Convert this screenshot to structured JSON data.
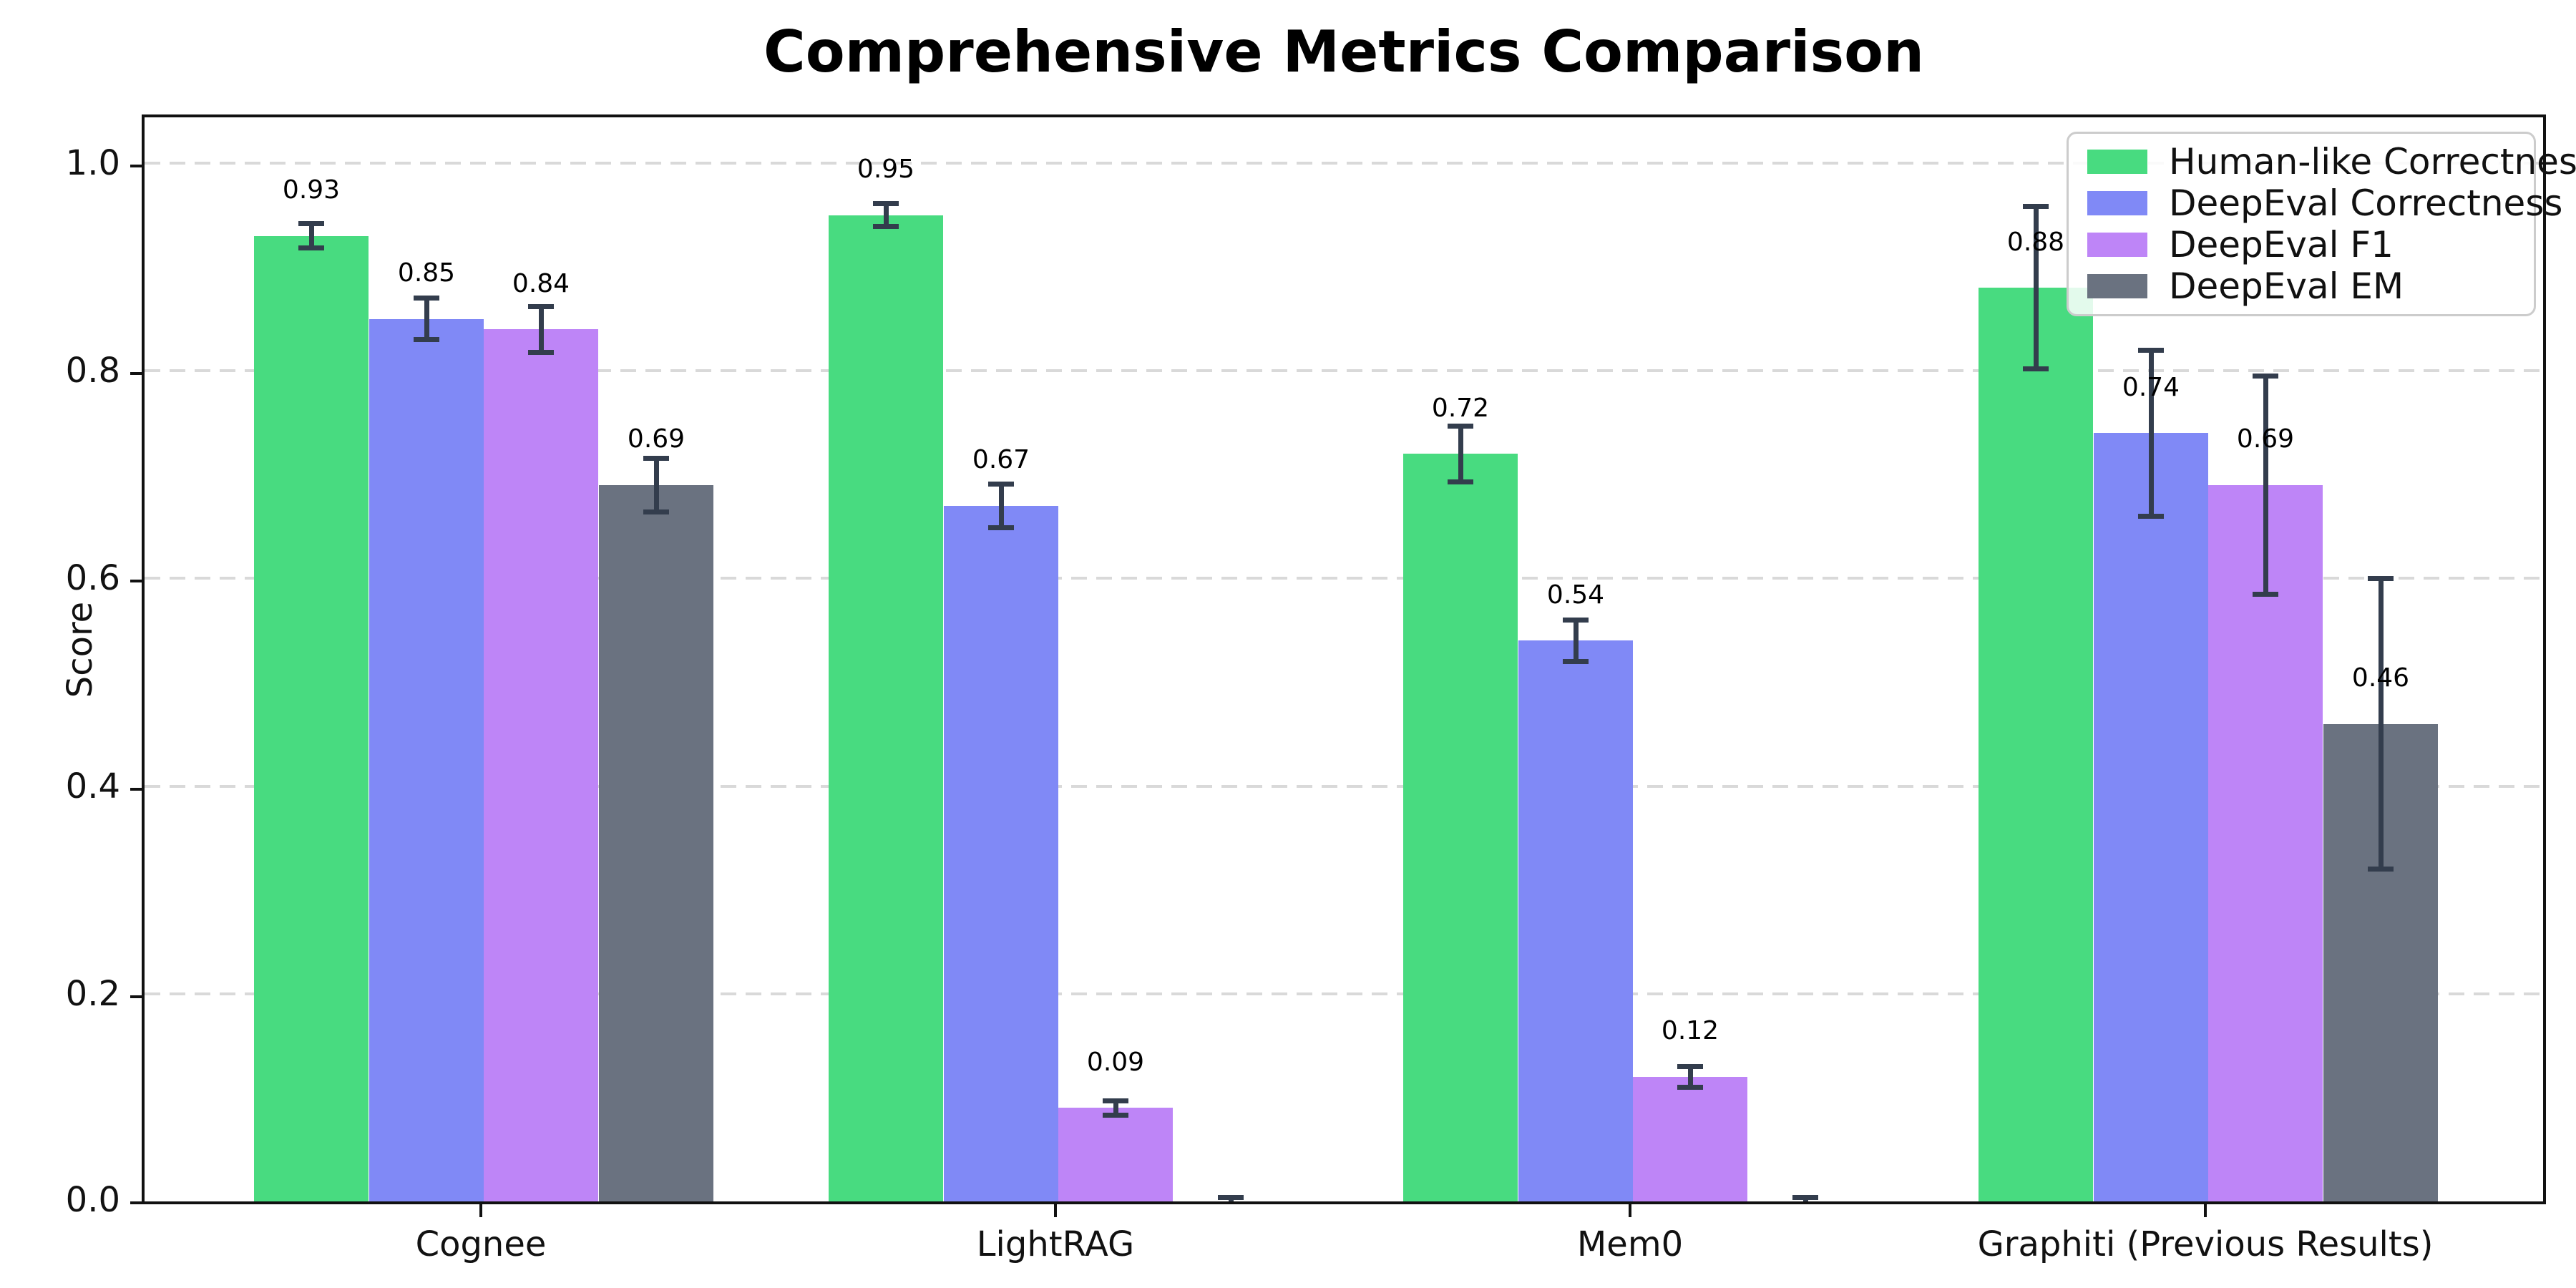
{
  "chart_data": {
    "type": "bar",
    "title": "Comprehensive Metrics Comparison",
    "xlabel": "",
    "ylabel": "Score",
    "categories": [
      "Cognee",
      "LightRAG",
      "Mem0",
      "Graphiti (Previous Results)"
    ],
    "y_ticks": [
      0.0,
      0.2,
      0.4,
      0.6,
      0.8,
      1.0
    ],
    "ylim": [
      0.0,
      1.05
    ],
    "grid": "horizontal-dashed",
    "legend_position": "upper-right",
    "series": [
      {
        "name": "Human-like Correctness",
        "color": "#48db80",
        "values": [
          0.93,
          0.95,
          0.72,
          0.88
        ],
        "errors": [
          0.012,
          0.011,
          0.027,
          0.078
        ],
        "labels": [
          "0.93",
          "0.95",
          "0.72",
          "0.88"
        ]
      },
      {
        "name": "DeepEval Correctness",
        "color": "#8089f6",
        "values": [
          0.85,
          0.67,
          0.54,
          0.74
        ],
        "errors": [
          0.02,
          0.021,
          0.02,
          0.08
        ],
        "labels": [
          "0.85",
          "0.67",
          "0.54",
          "0.74"
        ]
      },
      {
        "name": "DeepEval F1",
        "color": "#be85f7",
        "values": [
          0.84,
          0.09,
          0.12,
          0.69
        ],
        "errors": [
          0.022,
          0.007,
          0.01,
          0.105
        ],
        "labels": [
          "0.84",
          "0.09",
          "0.12",
          "0.69"
        ]
      },
      {
        "name": "DeepEval EM",
        "color": "#6a7280",
        "values": [
          0.69,
          0.0,
          0.0,
          0.46
        ],
        "errors": [
          0.026,
          0.004,
          0.004,
          0.14
        ],
        "labels": [
          "0.69",
          null,
          null,
          "0.46"
        ]
      }
    ],
    "colors": {
      "error_bar": "#333d4d",
      "grid_line": "#d9d9d9",
      "axis": "#111111",
      "legend_border": "#cccccc"
    }
  }
}
